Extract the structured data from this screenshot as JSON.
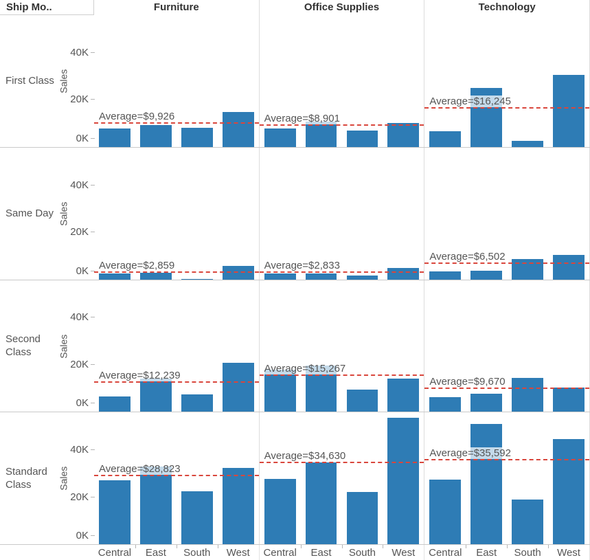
{
  "header": {
    "row_field_label": "Ship Mo..",
    "columns": [
      "Furniture",
      "Office Supplies",
      "Technology"
    ]
  },
  "colors": {
    "bar": "#2e7cb5",
    "average_line": "#d9463c",
    "text": "#555555",
    "header_text": "#333333",
    "panel_gridline": "#dcdcdc",
    "row_border": "#c9c9c9",
    "tick_mark": "#b5b5b5",
    "average_label_bg": "rgba(255,255,255,0.72)"
  },
  "chart_data": {
    "type": "bar",
    "facet_row_field": "Ship Mode",
    "facet_col_field": "Category",
    "categories": [
      "Central",
      "East",
      "South",
      "West"
    ],
    "ylabel": "Sales",
    "y_tick_labels": [
      "0K",
      "20K",
      "40K"
    ],
    "y_tick_values_k": [
      0,
      20,
      40
    ],
    "ylim_k": [
      0,
      57
    ],
    "grid": false,
    "legend": false,
    "rows": [
      {
        "ship_mode": "First Class",
        "panels": [
          {
            "category": "Furniture",
            "avg_label": "Average=$9,926",
            "average_k": 9.926,
            "values_k": [
              7.7,
              9.3,
              8.0,
              14.7
            ]
          },
          {
            "category": "Office Supplies",
            "avg_label": "Average=$8,901",
            "average_k": 8.901,
            "values_k": [
              7.7,
              10.6,
              7.0,
              10.3
            ]
          },
          {
            "category": "Technology",
            "avg_label": "Average=$16,245",
            "average_k": 16.245,
            "values_k": [
              6.7,
              25.0,
              2.6,
              30.7
            ]
          }
        ]
      },
      {
        "ship_mode": "Same Day",
        "panels": [
          {
            "category": "Furniture",
            "avg_label": "Average=$2,859",
            "average_k": 2.859,
            "values_k": [
              2.5,
              2.9,
              0.3,
              5.7
            ]
          },
          {
            "category": "Office Supplies",
            "avg_label": "Average=$2,833",
            "average_k": 2.833,
            "values_k": [
              2.6,
              2.5,
              1.5,
              4.7
            ]
          },
          {
            "category": "Technology",
            "avg_label": "Average=$6,502",
            "average_k": 6.502,
            "values_k": [
              3.4,
              3.6,
              8.7,
              10.3
            ]
          }
        ]
      },
      {
        "ship_mode": "Second Class",
        "panels": [
          {
            "category": "Furniture",
            "avg_label": "Average=$12,239",
            "average_k": 12.239,
            "values_k": [
              6.6,
              14.1,
              7.5,
              20.8
            ]
          },
          {
            "category": "Office Supplies",
            "avg_label": "Average=$15,267",
            "average_k": 15.267,
            "values_k": [
              18.0,
              19.6,
              9.3,
              14.2
            ]
          },
          {
            "category": "Technology",
            "avg_label": "Average=$9,670",
            "average_k": 9.67,
            "values_k": [
              6.3,
              7.7,
              14.3,
              10.4
            ]
          }
        ]
      },
      {
        "ship_mode": "Standard Class",
        "panels": [
          {
            "category": "Furniture",
            "avg_label": "Average=$28,823",
            "average_k": 28.823,
            "values_k": [
              27.3,
              33.1,
              22.5,
              32.4
            ]
          },
          {
            "category": "Office Supplies",
            "avg_label": "Average=$34,630",
            "average_k": 34.63,
            "values_k": [
              27.8,
              34.7,
              22.2,
              53.8
            ]
          },
          {
            "category": "Technology",
            "avg_label": "Average=$35,592",
            "average_k": 35.592,
            "values_k": [
              27.4,
              51.3,
              18.9,
              44.8
            ]
          }
        ]
      }
    ]
  }
}
